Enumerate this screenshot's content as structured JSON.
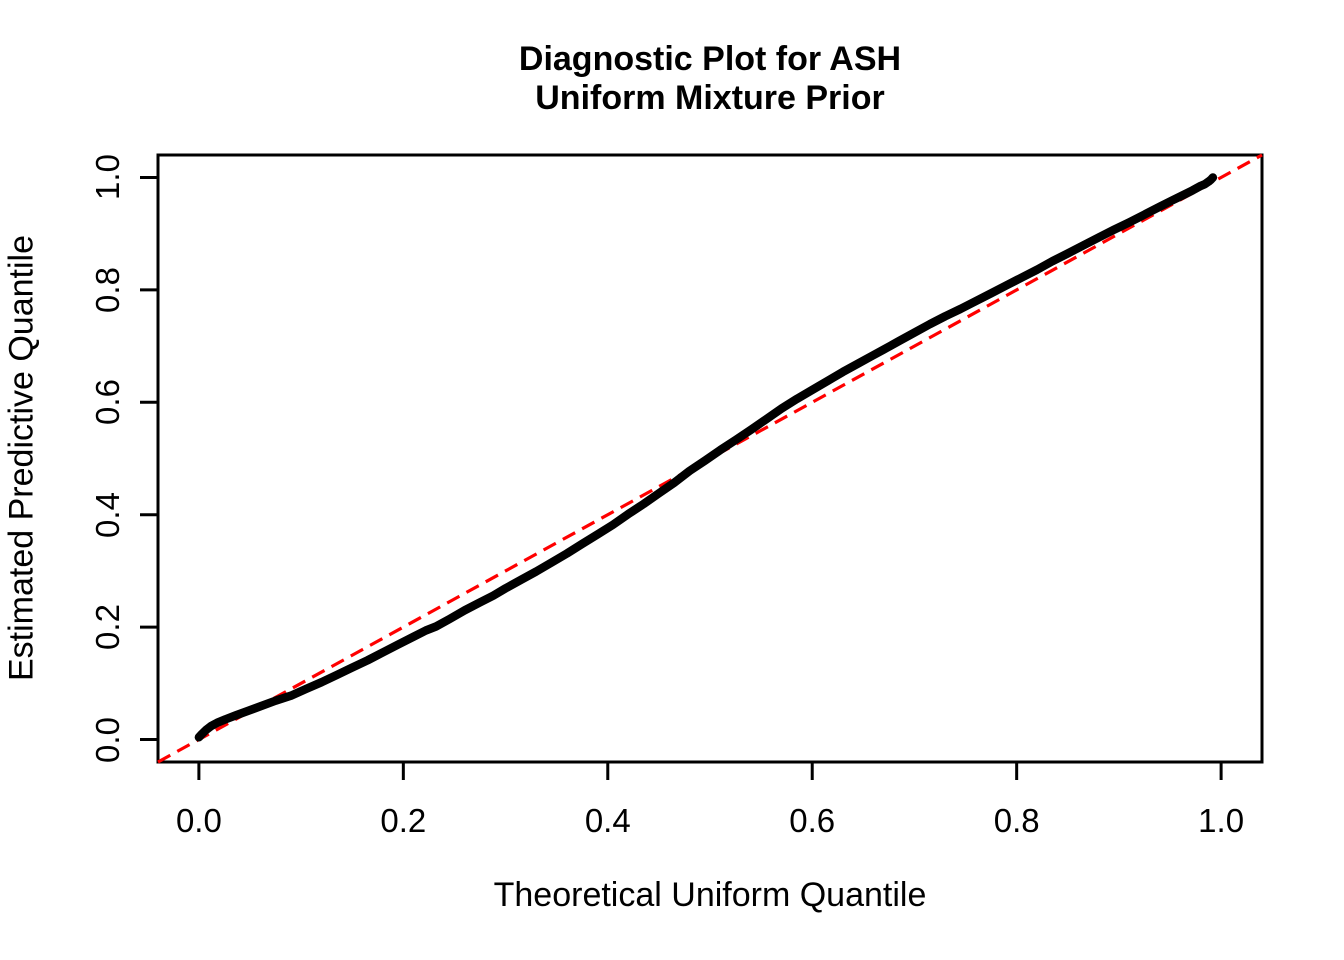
{
  "title": {
    "line1": "Diagnostic Plot for ASH",
    "line2": "Uniform Mixture Prior"
  },
  "axes": {
    "x_label": "Theoretical Uniform Quantile",
    "y_label": "Estimated Predictive Quantile",
    "x_tick_labels": [
      "0.0",
      "0.2",
      "0.4",
      "0.6",
      "0.8",
      "1.0"
    ],
    "y_tick_labels": [
      "0.0",
      "0.2",
      "0.4",
      "0.6",
      "0.8",
      "1.0"
    ]
  },
  "colors": {
    "curve": "#000000",
    "reference_line": "#FF0000",
    "axis": "#000000",
    "background": "#FFFFFF",
    "text": "#000000"
  },
  "chart_data": {
    "type": "line",
    "title": "Diagnostic Plot for ASH Uniform Mixture Prior",
    "xlabel": "Theoretical Uniform Quantile",
    "ylabel": "Estimated Predictive Quantile",
    "xlim": [
      -0.04,
      1.04
    ],
    "ylim": [
      -0.04,
      1.04
    ],
    "x_tick_values": [
      0.0,
      0.2,
      0.4,
      0.6,
      0.8,
      1.0
    ],
    "y_tick_values": [
      0.0,
      0.2,
      0.4,
      0.6,
      0.8,
      1.0
    ],
    "grid": false,
    "legend": false,
    "series": [
      {
        "name": "estimated-predictive-quantile-curve",
        "style": "dense-black-points",
        "points": [
          [
            0.0,
            0.004
          ],
          [
            0.003,
            0.01
          ],
          [
            0.007,
            0.017
          ],
          [
            0.012,
            0.024
          ],
          [
            0.018,
            0.03
          ],
          [
            0.026,
            0.036
          ],
          [
            0.036,
            0.043
          ],
          [
            0.048,
            0.051
          ],
          [
            0.06,
            0.059
          ],
          [
            0.075,
            0.069
          ],
          [
            0.09,
            0.078
          ],
          [
            0.105,
            0.09
          ],
          [
            0.12,
            0.102
          ],
          [
            0.135,
            0.115
          ],
          [
            0.15,
            0.128
          ],
          [
            0.165,
            0.141
          ],
          [
            0.18,
            0.155
          ],
          [
            0.195,
            0.169
          ],
          [
            0.21,
            0.183
          ],
          [
            0.222,
            0.194
          ],
          [
            0.232,
            0.201
          ],
          [
            0.245,
            0.214
          ],
          [
            0.26,
            0.23
          ],
          [
            0.275,
            0.244
          ],
          [
            0.288,
            0.256
          ],
          [
            0.3,
            0.269
          ],
          [
            0.315,
            0.284
          ],
          [
            0.33,
            0.299
          ],
          [
            0.345,
            0.315
          ],
          [
            0.36,
            0.331
          ],
          [
            0.375,
            0.348
          ],
          [
            0.39,
            0.365
          ],
          [
            0.405,
            0.382
          ],
          [
            0.42,
            0.401
          ],
          [
            0.435,
            0.419
          ],
          [
            0.45,
            0.438
          ],
          [
            0.465,
            0.457
          ],
          [
            0.48,
            0.478
          ],
          [
            0.495,
            0.496
          ],
          [
            0.51,
            0.515
          ],
          [
            0.525,
            0.533
          ],
          [
            0.54,
            0.551
          ],
          [
            0.555,
            0.57
          ],
          [
            0.57,
            0.589
          ],
          [
            0.585,
            0.606
          ],
          [
            0.6,
            0.622
          ],
          [
            0.615,
            0.638
          ],
          [
            0.63,
            0.654
          ],
          [
            0.645,
            0.669
          ],
          [
            0.658,
            0.682
          ],
          [
            0.67,
            0.694
          ],
          [
            0.685,
            0.709
          ],
          [
            0.7,
            0.724
          ],
          [
            0.715,
            0.739
          ],
          [
            0.73,
            0.753
          ],
          [
            0.745,
            0.766
          ],
          [
            0.76,
            0.78
          ],
          [
            0.775,
            0.794
          ],
          [
            0.79,
            0.808
          ],
          [
            0.805,
            0.822
          ],
          [
            0.82,
            0.836
          ],
          [
            0.835,
            0.851
          ],
          [
            0.85,
            0.865
          ],
          [
            0.865,
            0.879
          ],
          [
            0.88,
            0.893
          ],
          [
            0.895,
            0.907
          ],
          [
            0.91,
            0.92
          ],
          [
            0.925,
            0.934
          ],
          [
            0.94,
            0.948
          ],
          [
            0.952,
            0.959
          ],
          [
            0.962,
            0.968
          ],
          [
            0.972,
            0.977
          ],
          [
            0.98,
            0.985
          ],
          [
            0.984,
            0.988
          ],
          [
            0.988,
            0.993
          ],
          [
            0.99,
            0.996
          ],
          [
            0.992,
            1.0
          ]
        ]
      },
      {
        "name": "identity-reference-line",
        "style": "red-dashed",
        "points": [
          [
            -0.04,
            -0.04
          ],
          [
            1.04,
            1.04
          ]
        ]
      }
    ]
  }
}
